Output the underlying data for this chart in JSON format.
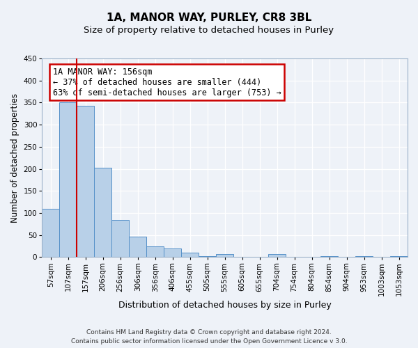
{
  "title": "1A, MANOR WAY, PURLEY, CR8 3BL",
  "subtitle": "Size of property relative to detached houses in Purley",
  "xlabel": "Distribution of detached houses by size in Purley",
  "ylabel": "Number of detached properties",
  "bin_labels": [
    "57sqm",
    "107sqm",
    "157sqm",
    "206sqm",
    "256sqm",
    "306sqm",
    "356sqm",
    "406sqm",
    "455sqm",
    "505sqm",
    "555sqm",
    "605sqm",
    "655sqm",
    "704sqm",
    "754sqm",
    "804sqm",
    "854sqm",
    "904sqm",
    "953sqm",
    "1003sqm",
    "1053sqm"
  ],
  "bar_heights": [
    110,
    350,
    343,
    203,
    85,
    47,
    25,
    20,
    11,
    2,
    7,
    1,
    1,
    7,
    1,
    1,
    3,
    1,
    3,
    1,
    3
  ],
  "bar_color": "#b8d0e8",
  "bar_edge_color": "#5590c8",
  "vline_color": "#cc0000",
  "annotation_text": "1A MANOR WAY: 156sqm\n← 37% of detached houses are smaller (444)\n63% of semi-detached houses are larger (753) →",
  "annotation_box_color": "#ffffff",
  "annotation_box_edge": "#cc0000",
  "ylim": [
    0,
    450
  ],
  "yticks": [
    0,
    50,
    100,
    150,
    200,
    250,
    300,
    350,
    400,
    450
  ],
  "footer1": "Contains HM Land Registry data © Crown copyright and database right 2024.",
  "footer2": "Contains public sector information licensed under the Open Government Licence v 3.0.",
  "background_color": "#eef2f8",
  "grid_color": "#ffffff",
  "title_fontsize": 11,
  "subtitle_fontsize": 9.5,
  "xlabel_fontsize": 9,
  "ylabel_fontsize": 8.5,
  "tick_fontsize": 7.5,
  "annotation_fontsize": 8.5,
  "footer_fontsize": 6.5
}
